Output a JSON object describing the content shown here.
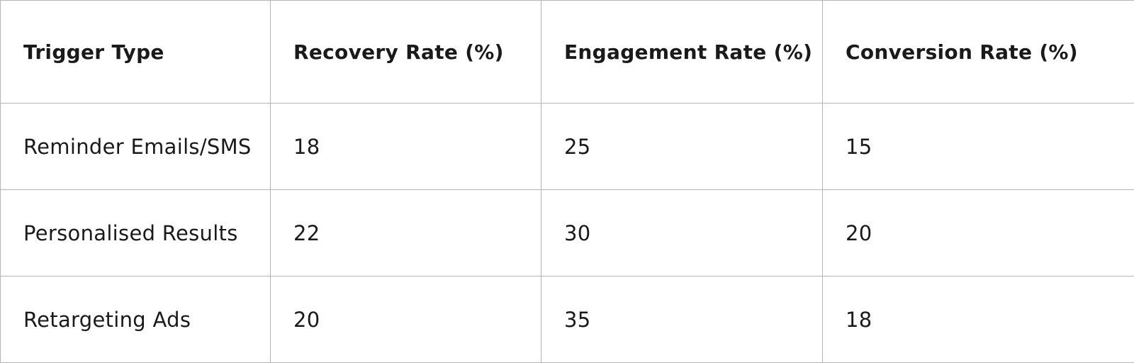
{
  "table": {
    "header": [
      "Trigger Type",
      "Recovery Rate (%)",
      "Engagement Rate (%)",
      "Conversion Rate (%)"
    ],
    "rows": [
      [
        "Reminder Emails/SMS",
        18,
        25,
        15
      ],
      [
        "Personalised Results",
        22,
        30,
        20
      ],
      [
        "Retargeting Ads",
        20,
        35,
        18
      ]
    ]
  }
}
